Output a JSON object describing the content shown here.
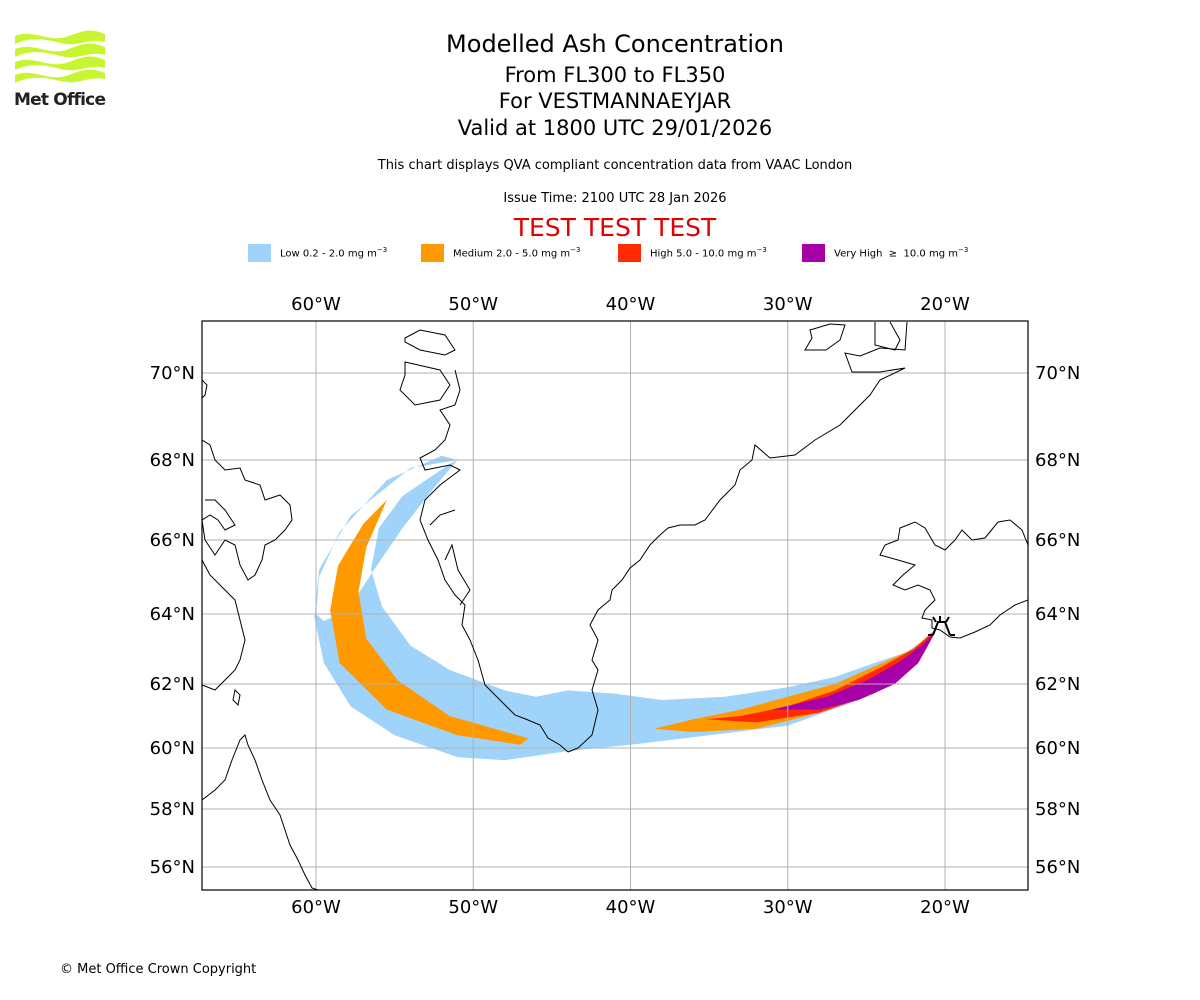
{
  "logo": {
    "text": "Met Office",
    "accent": "#c8f532"
  },
  "header": {
    "title": "Modelled Ash Concentration",
    "levels": "From FL300 to FL350",
    "volcano": "For VESTMANNAEYJAR",
    "valid": "Valid at 1800 UTC 29/01/2026",
    "subtitle": "This chart displays QVA compliant concentration data from VAAC London",
    "issue_time": "Issue Time: 2100 UTC 28 Jan 2026",
    "test_banner": "TEST TEST TEST",
    "test_color": "#e00000"
  },
  "legend": [
    {
      "label": "Low 0.2 - 2.0 mg m",
      "sup": "−3",
      "color": "#a0d3fa"
    },
    {
      "label": "Medium 2.0 - 5.0 mg m",
      "sup": "−3",
      "color": "#ff9900"
    },
    {
      "label": "High 5.0 - 10.0 mg m",
      "sup": "−3",
      "color": "#ff2a00"
    },
    {
      "label": "Very High  ≥  10.0 mg m",
      "sup": "−3",
      "color": "#a800a8"
    }
  ],
  "chart_data": {
    "type": "map",
    "title": "Modelled Ash Concentration",
    "projection": "lat-lon",
    "lon_range": [
      -67.3,
      -15.0
    ],
    "lat_range": [
      55.3,
      71.2
    ],
    "lon_ticks": [
      "60°W",
      "50°W",
      "40°W",
      "30°W",
      "20°W"
    ],
    "lon_tick_values": [
      -60,
      -50,
      -40,
      -30,
      -20
    ],
    "lat_ticks": [
      "70°N",
      "68°N",
      "66°N",
      "64°N",
      "62°N",
      "60°N",
      "58°N",
      "56°N"
    ],
    "lat_tick_values": [
      70,
      68,
      66,
      64,
      62,
      60,
      58,
      56
    ],
    "grid": true,
    "volcano": {
      "name": "VESTMANNAEYJAR",
      "lon": -20.3,
      "lat": 63.45
    },
    "ash_polygons": [
      {
        "level": "low",
        "color": "#a0d3fa",
        "points": [
          [
            -20.5,
            63.6
          ],
          [
            -21.2,
            63.3
          ],
          [
            -22.5,
            62.9
          ],
          [
            -24.5,
            62.6
          ],
          [
            -27,
            62.2
          ],
          [
            -30,
            61.9
          ],
          [
            -34,
            61.6
          ],
          [
            -38,
            61.5
          ],
          [
            -41,
            61.7
          ],
          [
            -44,
            61.8
          ],
          [
            -46,
            61.6
          ],
          [
            -48,
            61.8
          ],
          [
            -51.5,
            62.4
          ],
          [
            -54,
            63.1
          ],
          [
            -55.8,
            64.2
          ],
          [
            -56.5,
            65.2
          ],
          [
            -56,
            66.3
          ],
          [
            -54.5,
            67.1
          ],
          [
            -51.5,
            67.9
          ],
          [
            -51,
            68.0
          ],
          [
            -52.5,
            67.3
          ],
          [
            -54.5,
            66.3
          ],
          [
            -56.3,
            65.2
          ],
          [
            -58,
            64.1
          ],
          [
            -59.5,
            63.8
          ],
          [
            -60,
            64.0
          ],
          [
            -59.8,
            65.0
          ],
          [
            -58.5,
            66.2
          ],
          [
            -55.5,
            67.5
          ],
          [
            -52,
            68.1
          ],
          [
            -51,
            68.0
          ],
          [
            -54,
            67.8
          ],
          [
            -57.8,
            66.6
          ],
          [
            -59.8,
            65.2
          ],
          [
            -60.1,
            63.9
          ],
          [
            -59.5,
            62.6
          ],
          [
            -57.8,
            61.3
          ],
          [
            -55,
            60.4
          ],
          [
            -51,
            59.7
          ],
          [
            -48,
            59.6
          ],
          [
            -44,
            59.9
          ],
          [
            -40,
            60.1
          ],
          [
            -35,
            60.4
          ],
          [
            -30,
            60.7
          ],
          [
            -26,
            61.4
          ],
          [
            -23,
            62.1
          ],
          [
            -21.3,
            62.9
          ],
          [
            -20.5,
            63.6
          ]
        ]
      },
      {
        "level": "medium",
        "color": "#ff9900",
        "points": [
          [
            -20.8,
            63.5
          ],
          [
            -22,
            63.0
          ],
          [
            -24,
            62.6
          ],
          [
            -27,
            62.0
          ],
          [
            -30,
            61.6
          ],
          [
            -33,
            61.2
          ],
          [
            -36,
            60.9
          ],
          [
            -38.5,
            60.6
          ],
          [
            -36,
            60.5
          ],
          [
            -32,
            60.6
          ],
          [
            -28,
            61.1
          ],
          [
            -24.5,
            61.7
          ],
          [
            -22,
            62.5
          ],
          [
            -20.8,
            63.5
          ]
        ]
      },
      {
        "level": "medium",
        "color": "#ff9900",
        "points": [
          [
            -55.5,
            67.0
          ],
          [
            -56.8,
            65.8
          ],
          [
            -57.3,
            64.6
          ],
          [
            -56.8,
            63.3
          ],
          [
            -54.8,
            62.1
          ],
          [
            -51.5,
            61.0
          ],
          [
            -46.5,
            60.3
          ],
          [
            -47,
            60.1
          ],
          [
            -51,
            60.4
          ],
          [
            -55.5,
            61.2
          ],
          [
            -58.5,
            62.6
          ],
          [
            -59.1,
            64.1
          ],
          [
            -58.6,
            65.3
          ],
          [
            -57,
            66.4
          ],
          [
            -55.5,
            67.0
          ]
        ]
      },
      {
        "level": "high",
        "color": "#ff2a00",
        "points": [
          [
            -20.7,
            63.5
          ],
          [
            -22,
            63.0
          ],
          [
            -24,
            62.5
          ],
          [
            -27,
            61.8
          ],
          [
            -30,
            61.3
          ],
          [
            -33,
            61.0
          ],
          [
            -35.2,
            60.9
          ],
          [
            -32,
            60.8
          ],
          [
            -28,
            61.1
          ],
          [
            -25,
            61.6
          ],
          [
            -22.5,
            62.3
          ],
          [
            -20.7,
            63.5
          ]
        ]
      },
      {
        "level": "very_high",
        "color": "#a800a8",
        "points": [
          [
            -20.6,
            63.5
          ],
          [
            -21.5,
            63.1
          ],
          [
            -23,
            62.6
          ],
          [
            -25,
            62.1
          ],
          [
            -27.5,
            61.6
          ],
          [
            -31,
            61.2
          ],
          [
            -28,
            61.2
          ],
          [
            -25.5,
            61.5
          ],
          [
            -23.2,
            62.0
          ],
          [
            -21.7,
            62.6
          ],
          [
            -20.6,
            63.5
          ]
        ]
      }
    ]
  },
  "footer": {
    "copyright": "© Met Office Crown Copyright"
  }
}
